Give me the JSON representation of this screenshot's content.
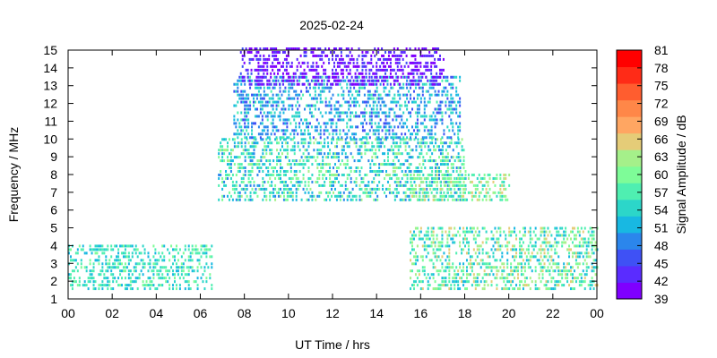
{
  "chart_data": {
    "type": "heatmap",
    "title": "2025-02-24",
    "xlabel": "UT Time / hrs",
    "ylabel": "Frequency / MHz",
    "colorbar_label": "Signal Amplitude / dB",
    "xlim": [
      0,
      24
    ],
    "ylim": [
      1,
      15
    ],
    "x_tick_labels": [
      "00",
      "02",
      "04",
      "06",
      "08",
      "10",
      "12",
      "14",
      "16",
      "18",
      "20",
      "22",
      "00"
    ],
    "y_tick_labels": [
      "1",
      "2",
      "3",
      "4",
      "5",
      "6",
      "7",
      "8",
      "9",
      "10",
      "11",
      "12",
      "13",
      "14",
      "15"
    ],
    "colorbar_range": [
      39,
      81
    ],
    "colorbar_tick_labels": [
      "39",
      "42",
      "45",
      "48",
      "51",
      "54",
      "57",
      "60",
      "63",
      "66",
      "69",
      "72",
      "75",
      "78",
      "81"
    ],
    "colorbar_colors": [
      "#7f00ff",
      "#5a2cff",
      "#3f51f5",
      "#2b86ec",
      "#18b8e2",
      "#2cd6c9",
      "#4fefb1",
      "#7efc98",
      "#a5f08a",
      "#e5cc78",
      "#ffa662",
      "#ff8748",
      "#ff5d2f",
      "#ff2b17",
      "#ff0000"
    ],
    "grid": false,
    "series": [],
    "data_regions": [
      {
        "time_range": [
          0,
          6.5
        ],
        "freq_range": [
          1.5,
          4.0
        ],
        "amplitude_range": [
          51,
          60
        ]
      },
      {
        "time_range": [
          6.8,
          18
        ],
        "freq_range": [
          6.5,
          10.0
        ],
        "amplitude_range": [
          48,
          63
        ]
      },
      {
        "time_range": [
          7.5,
          17.8
        ],
        "freq_range": [
          10.0,
          13.5
        ],
        "amplitude_range": [
          45,
          57
        ]
      },
      {
        "time_range": [
          7.8,
          17.0
        ],
        "freq_range": [
          13.0,
          15.0
        ],
        "amplitude_range": [
          39,
          45
        ]
      },
      {
        "time_range": [
          15.5,
          24
        ],
        "freq_range": [
          1.5,
          5.0
        ],
        "amplitude_range": [
          51,
          66
        ]
      },
      {
        "time_range": [
          15.5,
          20
        ],
        "freq_range": [
          6.5,
          8.0
        ],
        "amplitude_range": [
          54,
          66
        ]
      }
    ]
  }
}
